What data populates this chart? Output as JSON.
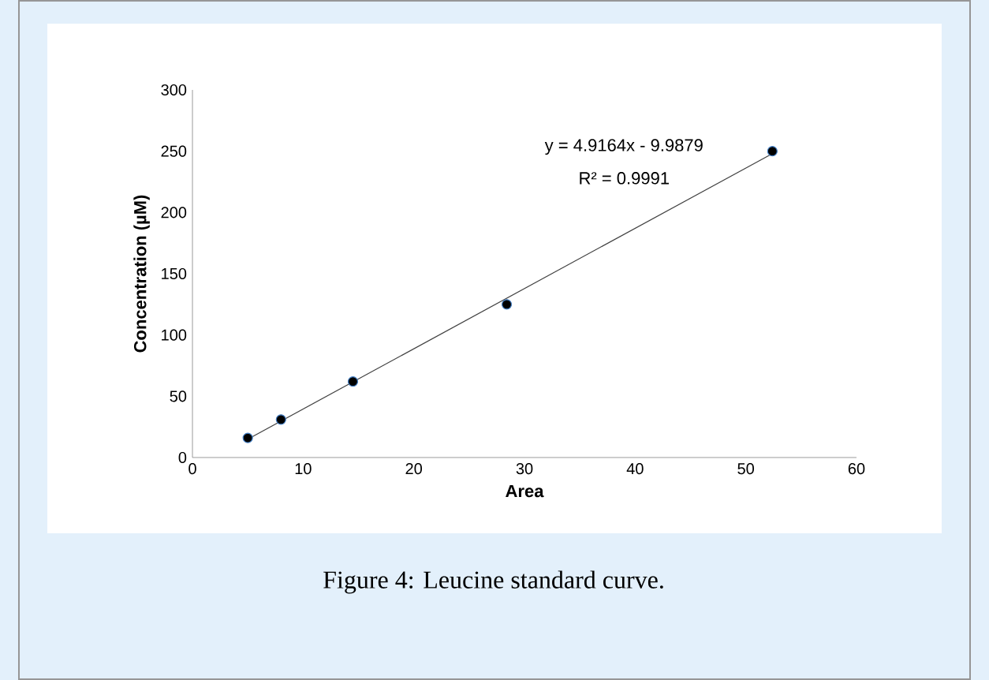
{
  "chart_data": {
    "type": "scatter",
    "xlabel": "Area",
    "ylabel": "Concentration (µM)",
    "series": [
      {
        "color": "#000000",
        "x": [
          5.0,
          8.0,
          14.5,
          28.4,
          52.4
        ],
        "values": [
          16,
          31,
          62,
          125,
          250
        ],
        "marker": "circle"
      },
      {
        "type": "line",
        "color": "#404040",
        "x": [
          5.0,
          52.4
        ],
        "values": [
          15,
          248
        ],
        "marker": "none"
      }
    ],
    "xlim": [
      0,
      60
    ],
    "xticks": [
      0,
      10,
      20,
      30,
      40,
      50,
      60
    ],
    "ylim": [
      0,
      300
    ],
    "yticks": [
      0,
      50,
      100,
      150,
      200,
      250,
      300
    ],
    "grid": false,
    "annotations": [
      "y = 4.9164x - 9.9879",
      "R² = 0.9991",
      "Figure 4: Leucine standard curve."
    ]
  }
}
